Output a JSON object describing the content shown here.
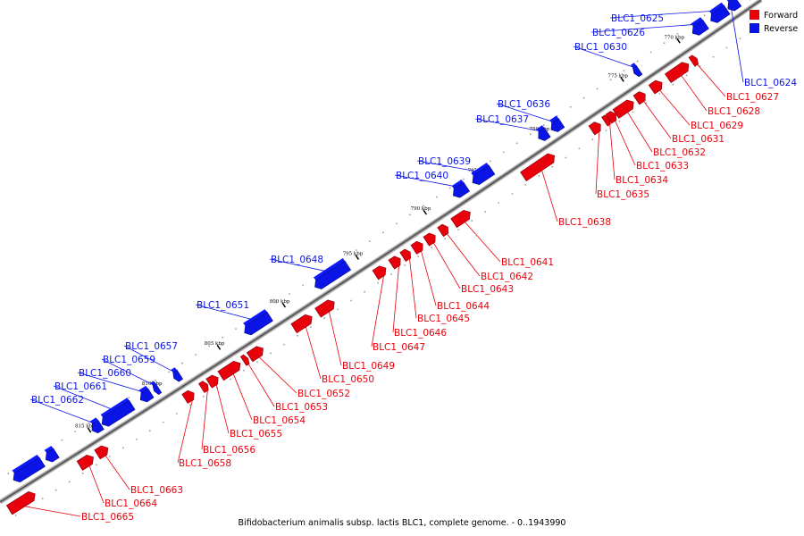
{
  "title": "Bifidobacterium animalis subsp. lactis BLC1, complete genome. - 0..1943990",
  "legend": [
    {
      "label": "Forward",
      "color": "#e8000b"
    },
    {
      "label": "Reverse",
      "color": "#0a14e6"
    }
  ],
  "colors": {
    "forward": "#e8000b",
    "reverse": "#0a14e6",
    "backbone": "#8c8c8c"
  },
  "scale_ticks": [
    "770 kbp",
    "775 kbp",
    "780 kbp",
    "785 kbp",
    "790 kbp",
    "795 kbp",
    "800 kbp",
    "805 kbp",
    "810 kbp",
    "815 kbp"
  ],
  "genes": [
    {
      "name": "BLC1_0624",
      "strand": "reverse"
    },
    {
      "name": "BLC1_0625",
      "strand": "reverse"
    },
    {
      "name": "BLC1_0626",
      "strand": "reverse"
    },
    {
      "name": "BLC1_0627",
      "strand": "forward"
    },
    {
      "name": "BLC1_0628",
      "strand": "forward"
    },
    {
      "name": "BLC1_0629",
      "strand": "forward"
    },
    {
      "name": "BLC1_0630",
      "strand": "reverse"
    },
    {
      "name": "BLC1_0631",
      "strand": "forward"
    },
    {
      "name": "BLC1_0632",
      "strand": "forward"
    },
    {
      "name": "BLC1_0633",
      "strand": "forward"
    },
    {
      "name": "BLC1_0634",
      "strand": "forward"
    },
    {
      "name": "BLC1_0635",
      "strand": "forward"
    },
    {
      "name": "BLC1_0636",
      "strand": "reverse"
    },
    {
      "name": "BLC1_0637",
      "strand": "reverse"
    },
    {
      "name": "BLC1_0638",
      "strand": "forward"
    },
    {
      "name": "BLC1_0639",
      "strand": "reverse"
    },
    {
      "name": "BLC1_0640",
      "strand": "reverse"
    },
    {
      "name": "BLC1_0641",
      "strand": "forward"
    },
    {
      "name": "BLC1_0642",
      "strand": "forward"
    },
    {
      "name": "BLC1_0643",
      "strand": "forward"
    },
    {
      "name": "BLC1_0644",
      "strand": "forward"
    },
    {
      "name": "BLC1_0645",
      "strand": "forward"
    },
    {
      "name": "BLC1_0646",
      "strand": "forward"
    },
    {
      "name": "BLC1_0647",
      "strand": "forward"
    },
    {
      "name": "BLC1_0648",
      "strand": "reverse"
    },
    {
      "name": "BLC1_0649",
      "strand": "forward"
    },
    {
      "name": "BLC1_0650",
      "strand": "forward"
    },
    {
      "name": "BLC1_0651",
      "strand": "reverse"
    },
    {
      "name": "BLC1_0652",
      "strand": "forward"
    },
    {
      "name": "BLC1_0653",
      "strand": "forward"
    },
    {
      "name": "BLC1_0654",
      "strand": "forward"
    },
    {
      "name": "BLC1_0655",
      "strand": "forward"
    },
    {
      "name": "BLC1_0656",
      "strand": "forward"
    },
    {
      "name": "BLC1_0657",
      "strand": "reverse"
    },
    {
      "name": "BLC1_0658",
      "strand": "forward"
    },
    {
      "name": "BLC1_0659",
      "strand": "reverse"
    },
    {
      "name": "BLC1_0660",
      "strand": "reverse"
    },
    {
      "name": "BLC1_0661",
      "strand": "reverse"
    },
    {
      "name": "BLC1_0662",
      "strand": "reverse"
    },
    {
      "name": "BLC1_0663",
      "strand": "forward"
    },
    {
      "name": "BLC1_0664",
      "strand": "forward"
    },
    {
      "name": "BLC1_0665",
      "strand": "forward"
    }
  ]
}
